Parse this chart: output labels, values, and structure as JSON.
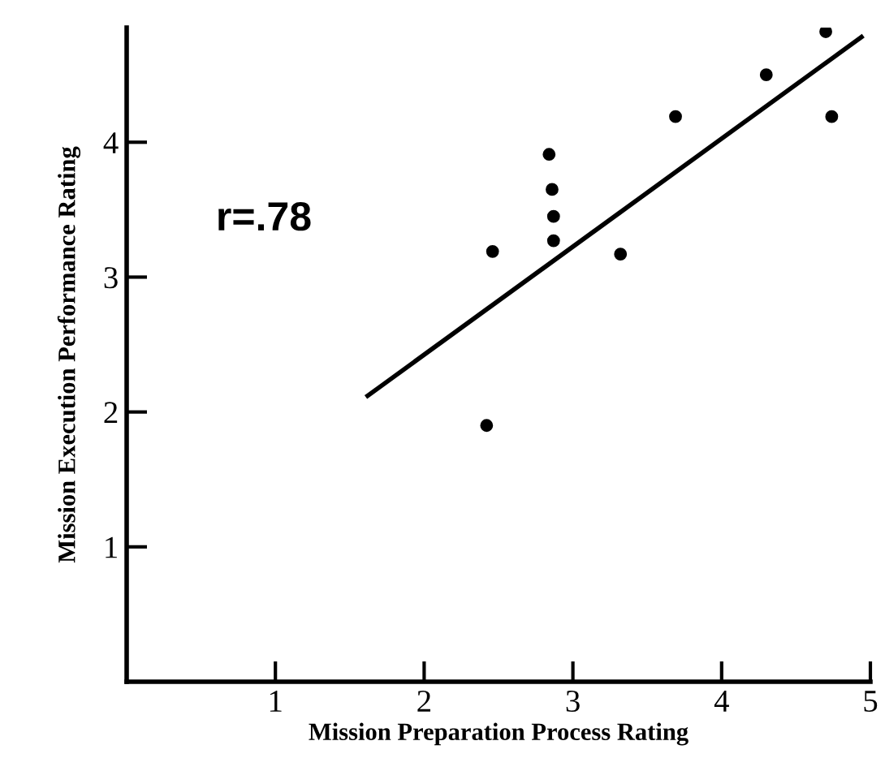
{
  "chart_data": {
    "type": "scatter",
    "xlabel": "Mission Preparation Process Rating",
    "ylabel": "Mission Execution Performance Rating",
    "annotations": [
      "r=.78"
    ],
    "xlim": [
      0,
      5
    ],
    "ylim": [
      0,
      4.85
    ],
    "xticks": [
      1,
      2,
      3,
      4,
      5
    ],
    "yticks": [
      1,
      2,
      3,
      4
    ],
    "grid": false,
    "series": [
      {
        "marker": "circle",
        "color": "#000000",
        "x": [
          2.46,
          2.42,
          2.84,
          2.86,
          2.87,
          2.87,
          3.32,
          3.69,
          4.3,
          4.7,
          4.74
        ],
        "values": [
          3.19,
          1.9,
          3.91,
          3.65,
          3.45,
          3.27,
          3.17,
          4.19,
          4.5,
          4.82,
          4.19
        ]
      },
      {
        "type": "line",
        "color": "#000000",
        "x": [
          1.62,
          4.94
        ],
        "values": [
          2.12,
          4.78
        ]
      }
    ]
  }
}
